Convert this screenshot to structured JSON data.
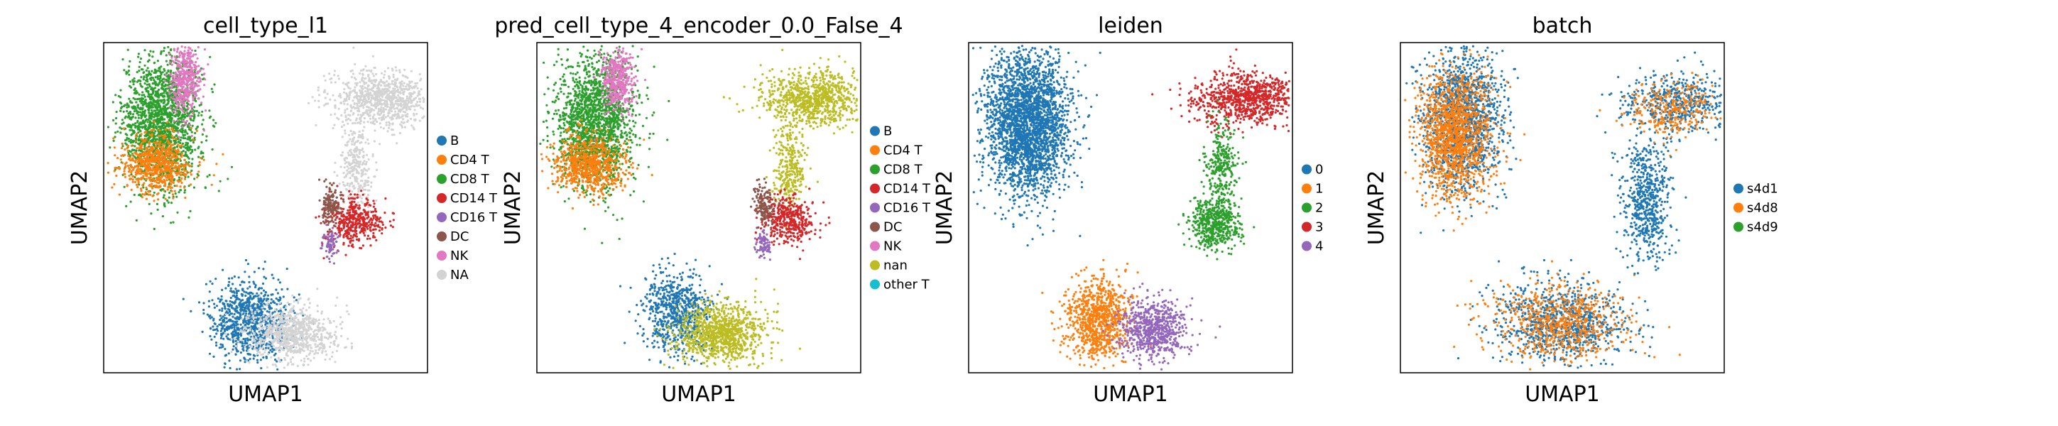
{
  "chart_data": [
    {
      "type": "scatter",
      "title": "cell_type_l1",
      "xlabel": "UMAP1",
      "ylabel": "UMAP2",
      "legend": {
        "placement": "right",
        "entries": [
          "B",
          "CD4 T",
          "CD8 T",
          "CD14 T",
          "CD16 T",
          "DC",
          "NK",
          "NA"
        ]
      },
      "colors": {
        "B": "#1f77b4",
        "CD4 T": "#ff7f0e",
        "CD8 T": "#2ca02c",
        "CD14 T": "#d62728",
        "CD16 T": "#9467bd",
        "DC": "#8c564b",
        "NK": "#e377c2",
        "NA": "#d3d3d3"
      },
      "clusters": [
        {
          "category": "CD8 T",
          "x": 0.18,
          "y": 0.76,
          "sx": 0.06,
          "sy": 0.1,
          "n": 1800
        },
        {
          "category": "CD4 T",
          "x": 0.16,
          "y": 0.63,
          "sx": 0.055,
          "sy": 0.045,
          "n": 700
        },
        {
          "category": "NK",
          "x": 0.25,
          "y": 0.89,
          "sx": 0.025,
          "sy": 0.05,
          "n": 450
        },
        {
          "category": "B",
          "x": 0.45,
          "y": 0.16,
          "sx": 0.06,
          "sy": 0.06,
          "n": 900
        },
        {
          "category": "NA",
          "x": 0.58,
          "y": 0.12,
          "sx": 0.07,
          "sy": 0.04,
          "n": 800
        },
        {
          "category": "NA",
          "x": 0.86,
          "y": 0.83,
          "sx": 0.08,
          "sy": 0.04,
          "n": 900
        },
        {
          "category": "NA",
          "x": 0.78,
          "y": 0.62,
          "sx": 0.025,
          "sy": 0.07,
          "n": 300
        },
        {
          "category": "CD14 T",
          "x": 0.78,
          "y": 0.46,
          "sx": 0.04,
          "sy": 0.035,
          "n": 400
        },
        {
          "category": "DC",
          "x": 0.7,
          "y": 0.51,
          "sx": 0.015,
          "sy": 0.03,
          "n": 150
        },
        {
          "category": "CD16 T",
          "x": 0.7,
          "y": 0.39,
          "sx": 0.012,
          "sy": 0.02,
          "n": 80
        }
      ]
    },
    {
      "type": "scatter",
      "title": "pred_cell_type_4_encoder_0.0_False_4",
      "xlabel": "UMAP1",
      "ylabel": "UMAP2",
      "legend": {
        "placement": "right",
        "entries": [
          "B",
          "CD4 T",
          "CD8 T",
          "CD14 T",
          "CD16 T",
          "DC",
          "NK",
          "nan",
          "other T"
        ]
      },
      "colors": {
        "B": "#1f77b4",
        "CD4 T": "#ff7f0e",
        "CD8 T": "#2ca02c",
        "CD14 T": "#d62728",
        "CD16 T": "#9467bd",
        "DC": "#8c564b",
        "NK": "#e377c2",
        "nan": "#bcbd22",
        "other T": "#17becf"
      },
      "clusters": [
        {
          "category": "CD8 T",
          "x": 0.18,
          "y": 0.76,
          "sx": 0.06,
          "sy": 0.1,
          "n": 1800
        },
        {
          "category": "CD4 T",
          "x": 0.16,
          "y": 0.63,
          "sx": 0.055,
          "sy": 0.045,
          "n": 700
        },
        {
          "category": "NK",
          "x": 0.25,
          "y": 0.89,
          "sx": 0.025,
          "sy": 0.05,
          "n": 450
        },
        {
          "category": "B",
          "x": 0.43,
          "y": 0.18,
          "sx": 0.05,
          "sy": 0.06,
          "n": 700
        },
        {
          "category": "nan",
          "x": 0.57,
          "y": 0.12,
          "sx": 0.07,
          "sy": 0.045,
          "n": 1000
        },
        {
          "category": "nan",
          "x": 0.86,
          "y": 0.83,
          "sx": 0.08,
          "sy": 0.04,
          "n": 900
        },
        {
          "category": "nan",
          "x": 0.78,
          "y": 0.62,
          "sx": 0.025,
          "sy": 0.07,
          "n": 300
        },
        {
          "category": "CD14 T",
          "x": 0.78,
          "y": 0.46,
          "sx": 0.04,
          "sy": 0.035,
          "n": 400
        },
        {
          "category": "DC",
          "x": 0.7,
          "y": 0.51,
          "sx": 0.015,
          "sy": 0.03,
          "n": 150
        },
        {
          "category": "CD16 T",
          "x": 0.7,
          "y": 0.39,
          "sx": 0.012,
          "sy": 0.02,
          "n": 80
        }
      ]
    },
    {
      "type": "scatter",
      "title": "leiden",
      "xlabel": "UMAP1",
      "ylabel": "UMAP2",
      "legend": {
        "placement": "right",
        "entries": [
          "0",
          "1",
          "2",
          "3",
          "4"
        ]
      },
      "colors": {
        "0": "#1f77b4",
        "1": "#ff7f0e",
        "2": "#2ca02c",
        "3": "#d62728",
        "4": "#9467bd"
      },
      "clusters": [
        {
          "category": "0",
          "x": 0.18,
          "y": 0.76,
          "sx": 0.065,
          "sy": 0.11,
          "n": 2800
        },
        {
          "category": "1",
          "x": 0.4,
          "y": 0.16,
          "sx": 0.05,
          "sy": 0.06,
          "n": 900
        },
        {
          "category": "4",
          "x": 0.57,
          "y": 0.13,
          "sx": 0.05,
          "sy": 0.045,
          "n": 700
        },
        {
          "category": "3",
          "x": 0.86,
          "y": 0.83,
          "sx": 0.08,
          "sy": 0.04,
          "n": 900
        },
        {
          "category": "2",
          "x": 0.78,
          "y": 0.62,
          "sx": 0.025,
          "sy": 0.07,
          "n": 300
        },
        {
          "category": "2",
          "x": 0.76,
          "y": 0.45,
          "sx": 0.04,
          "sy": 0.04,
          "n": 500
        }
      ]
    },
    {
      "type": "scatter",
      "title": "batch",
      "xlabel": "UMAP1",
      "ylabel": "UMAP2",
      "legend": {
        "placement": "right",
        "entries": [
          "s4d1",
          "s4d8",
          "s4d9"
        ]
      },
      "colors": {
        "s4d1": "#1f77b4",
        "s4d8": "#ff7f0e",
        "s4d9": "#2ca02c"
      },
      "clusters": [
        {
          "category": "s4d1",
          "x": 0.19,
          "y": 0.77,
          "sx": 0.065,
          "sy": 0.11,
          "n": 1400
        },
        {
          "category": "s4d8",
          "x": 0.17,
          "y": 0.72,
          "sx": 0.055,
          "sy": 0.1,
          "n": 1400
        },
        {
          "category": "s4d1",
          "x": 0.5,
          "y": 0.15,
          "sx": 0.1,
          "sy": 0.06,
          "n": 900
        },
        {
          "category": "s4d8",
          "x": 0.5,
          "y": 0.15,
          "sx": 0.1,
          "sy": 0.06,
          "n": 700
        },
        {
          "category": "s4d1",
          "x": 0.86,
          "y": 0.82,
          "sx": 0.08,
          "sy": 0.045,
          "n": 500
        },
        {
          "category": "s4d8",
          "x": 0.84,
          "y": 0.8,
          "sx": 0.07,
          "sy": 0.045,
          "n": 300
        },
        {
          "category": "s4d1",
          "x": 0.76,
          "y": 0.52,
          "sx": 0.035,
          "sy": 0.09,
          "n": 600
        }
      ]
    }
  ]
}
